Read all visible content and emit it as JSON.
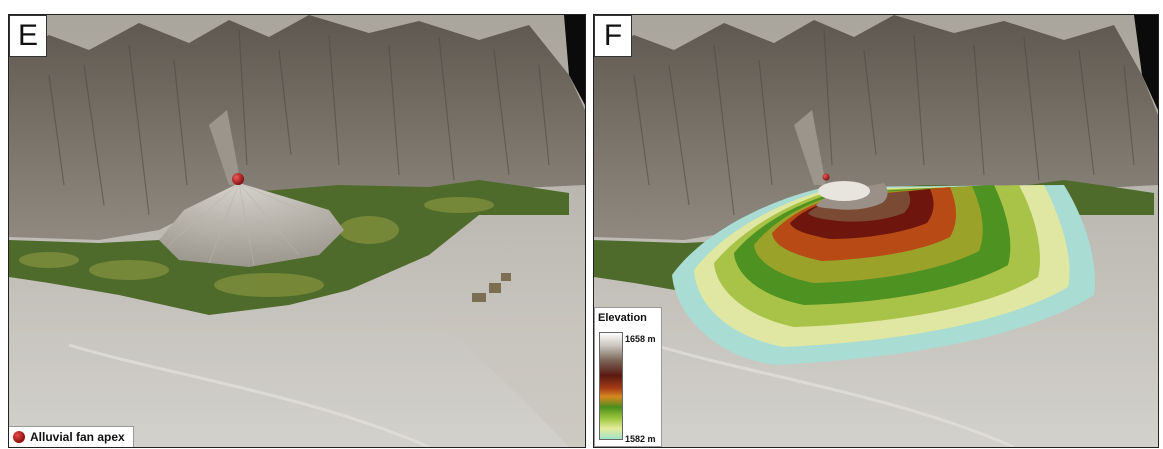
{
  "panels": {
    "left": {
      "letter": "E",
      "legend_label": "Alluvial fan apex"
    },
    "right": {
      "letter": "F",
      "legend": {
        "title": "Elevation",
        "max_label": "1658 m",
        "min_label": "1582 m"
      }
    }
  },
  "colors": {
    "apex_marker": "#b01818",
    "fan_bands": [
      "#a9dcd3",
      "#dfe7a2",
      "#a9c348",
      "#4e9222",
      "#9aa22a",
      "#b84a16",
      "#6e150e",
      "#7a4a34",
      "#9a9088",
      "#e8e4de"
    ]
  }
}
